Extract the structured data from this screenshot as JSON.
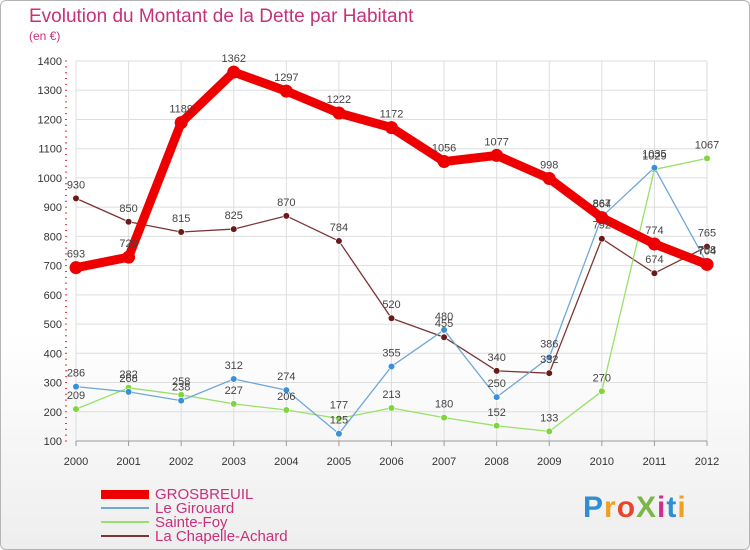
{
  "header": {
    "title": "Evolution du Montant de la Dette par Habitant",
    "subtitle": "(en €)"
  },
  "logo": {
    "text": "ProXiti",
    "letter_colors": [
      "#2f8fd0",
      "#f0a020",
      "#e8452c",
      "#7ab648",
      "#d12e8c",
      "#2f8fd0",
      "#f0a020"
    ]
  },
  "colors": {
    "axis_text": "#333333",
    "grid": "#dddddd",
    "title": "#c8307a"
  },
  "chart_data": {
    "type": "line",
    "title": "Evolution du Montant de la Dette par Habitant",
    "ylabel": "(en €)",
    "xlabel": "",
    "x": [
      "2000",
      "2001",
      "2002",
      "2003",
      "2004",
      "2005",
      "2006",
      "2007",
      "2008",
      "2009",
      "2010",
      "2011",
      "2012"
    ],
    "ylim": [
      100,
      1400
    ],
    "yticks": [
      100,
      200,
      300,
      400,
      500,
      600,
      700,
      800,
      900,
      1000,
      1100,
      1200,
      1300,
      1400
    ],
    "grid": true,
    "legend_position": "bottom-left",
    "series": [
      {
        "name": "GROSBREUIL",
        "color": "#ee0000",
        "marker": "#ee0000",
        "emphasis": true,
        "values": [
          693,
          729,
          1189,
          1362,
          1297,
          1222,
          1172,
          1056,
          1077,
          998,
          864,
          774,
          704
        ],
        "labels": [
          "693",
          "729",
          "1189",
          "1362",
          "1297",
          "1222",
          "1172",
          "1056",
          "1077",
          "998",
          "864",
          "774",
          "704"
        ]
      },
      {
        "name": "Le Girouard",
        "color": "#6fa8d8",
        "marker": "#3b8fd6",
        "values": [
          286,
          268,
          238,
          312,
          274,
          125,
          355,
          480,
          250,
          386,
          867,
          1035,
          708
        ],
        "labels": [
          "286",
          "268",
          "238",
          "312",
          "274",
          "125",
          "355",
          "480",
          "250",
          "386",
          "867",
          "1035",
          "708"
        ]
      },
      {
        "name": "Sainte-Foy",
        "color": "#99e06a",
        "marker": "#7ed63c",
        "values": [
          209,
          282,
          258,
          227,
          206,
          177,
          213,
          180,
          152,
          133,
          270,
          1029,
          1067
        ],
        "labels": [
          "209",
          "282",
          "258",
          "227",
          "206",
          "177",
          "213",
          "180",
          "152",
          "133",
          "270",
          "1029",
          "1067"
        ]
      },
      {
        "name": "La Chapelle-Achard",
        "color": "#7a3535",
        "marker": "#6b1a1a",
        "values": [
          930,
          850,
          815,
          825,
          870,
          784,
          520,
          455,
          340,
          332,
          792,
          674,
          765
        ],
        "labels": [
          "930",
          "850",
          "815",
          "825",
          "870",
          "784",
          "520",
          "455",
          "340",
          "332",
          "792",
          "674",
          "765"
        ]
      }
    ]
  }
}
